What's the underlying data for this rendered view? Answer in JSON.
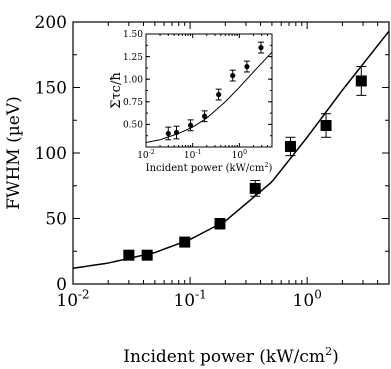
{
  "chart_data": [
    {
      "type": "scatter",
      "xlabel": "Incident power (kW/cm",
      "xlabel_sup": "2",
      "xlabel_end": ")",
      "ylabel": "FWHM (µeV)",
      "xscale": "log",
      "xlim": [
        0.01,
        5
      ],
      "ylim": [
        0,
        200
      ],
      "x_ticks": [
        {
          "value": 0.01,
          "base": "10",
          "exp": "-2"
        },
        {
          "value": 0.1,
          "base": "10",
          "exp": "-1"
        },
        {
          "value": 1,
          "base": "10",
          "exp": "0"
        }
      ],
      "y_ticks": [
        "0",
        "50",
        "100",
        "150",
        "200"
      ],
      "grid": false,
      "marker": "square",
      "points": [
        {
          "x": 0.03,
          "y": 22,
          "err": 2
        },
        {
          "x": 0.043,
          "y": 22,
          "err": 2
        },
        {
          "x": 0.09,
          "y": 32,
          "err": 3
        },
        {
          "x": 0.18,
          "y": 46,
          "err": 4
        },
        {
          "x": 0.36,
          "y": 73,
          "err": 6
        },
        {
          "x": 0.72,
          "y": 105,
          "err": 7
        },
        {
          "x": 1.45,
          "y": 121,
          "err": 9
        },
        {
          "x": 2.9,
          "y": 155,
          "err": 11
        }
      ],
      "fit_curve": {
        "x": [
          0.01,
          0.02,
          0.05,
          0.1,
          0.2,
          0.5,
          1,
          2,
          5
        ],
        "y": [
          12,
          16,
          24,
          34,
          48,
          78,
          112,
          148,
          193
        ]
      }
    },
    {
      "type": "scatter",
      "inset": true,
      "ylabel": "Στc/ħ",
      "xlabel": "Incident power (kW/cm",
      "xlabel_sup": "2",
      "xlabel_end": ")",
      "xscale": "log",
      "xlim": [
        0.01,
        5
      ],
      "ylim": [
        0.25,
        1.5
      ],
      "x_ticks": [
        {
          "value": 0.01,
          "base": "10",
          "exp": "-2"
        },
        {
          "value": 0.1,
          "base": "10",
          "exp": "-1"
        },
        {
          "value": 1,
          "base": "10",
          "exp": "0"
        }
      ],
      "y_ticks": [
        "0.50",
        "0.75",
        "1.00",
        "1.25",
        "1.50"
      ],
      "grid": false,
      "marker": "circle",
      "points": [
        {
          "x": 0.03,
          "y": 0.4,
          "err": 0.07
        },
        {
          "x": 0.045,
          "y": 0.41,
          "err": 0.07
        },
        {
          "x": 0.09,
          "y": 0.49,
          "err": 0.06
        },
        {
          "x": 0.18,
          "y": 0.59,
          "err": 0.06
        },
        {
          "x": 0.36,
          "y": 0.83,
          "err": 0.06
        },
        {
          "x": 0.72,
          "y": 1.04,
          "err": 0.06
        },
        {
          "x": 1.45,
          "y": 1.14,
          "err": 0.06
        },
        {
          "x": 2.9,
          "y": 1.35,
          "err": 0.06
        }
      ],
      "fit_curve": {
        "x": [
          0.01,
          0.02,
          0.05,
          0.1,
          0.2,
          0.5,
          1,
          2,
          5
        ],
        "y": [
          0.3,
          0.33,
          0.4,
          0.47,
          0.57,
          0.75,
          0.91,
          1.08,
          1.3
        ]
      }
    }
  ]
}
